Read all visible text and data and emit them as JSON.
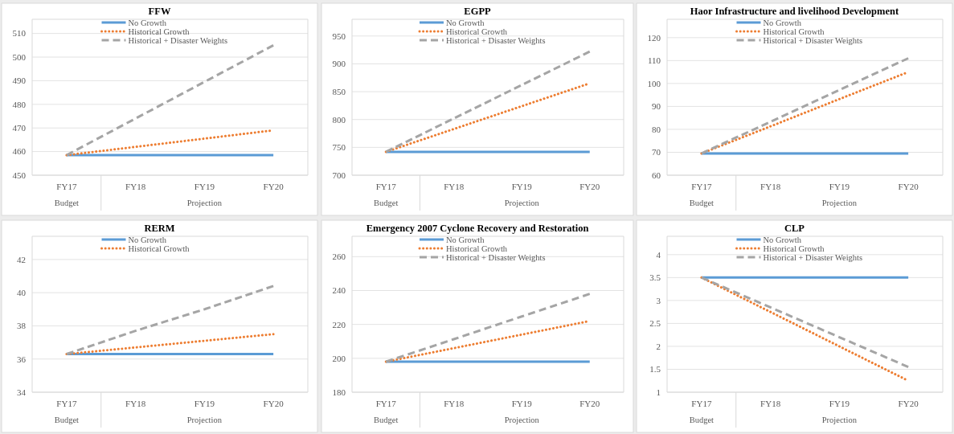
{
  "chart_data": [
    {
      "type": "line",
      "title": "FFW",
      "categories": [
        "FY17",
        "FY18",
        "FY19",
        "FY20"
      ],
      "ylim": [
        450,
        516
      ],
      "yticks": [
        450,
        460,
        470,
        480,
        490,
        500,
        510
      ],
      "grid": "y",
      "legend": "top",
      "annotations": [
        "Budget",
        "Projection"
      ],
      "series": [
        {
          "name": "No Growth",
          "color": "#5b9bd5",
          "line_style": "solid",
          "values": [
            458.5,
            458.5,
            458.5,
            458.5
          ]
        },
        {
          "name": "Historical Growth",
          "color": "#ed7d31",
          "line_style": "dotted",
          "values": [
            458.5,
            462,
            465.5,
            469
          ]
        },
        {
          "name": "Historical + Disaster Weights",
          "color": "#a5a5a5",
          "line_style": "dashed",
          "values": [
            458.5,
            474,
            489.5,
            505
          ]
        }
      ]
    },
    {
      "type": "line",
      "title": "EGPP",
      "categories": [
        "FY17",
        "FY18",
        "FY19",
        "FY20"
      ],
      "ylim": [
        700,
        980
      ],
      "yticks": [
        700,
        750,
        800,
        850,
        900,
        950
      ],
      "grid": "y",
      "legend": "top",
      "annotations": [
        "Budget",
        "Projection"
      ],
      "series": [
        {
          "name": "No Growth",
          "color": "#5b9bd5",
          "line_style": "solid",
          "values": [
            742,
            742,
            742,
            742
          ]
        },
        {
          "name": "Historical Growth",
          "color": "#ed7d31",
          "line_style": "dotted",
          "values": [
            742,
            783,
            824,
            865
          ]
        },
        {
          "name": "Historical + Disaster Weights",
          "color": "#a5a5a5",
          "line_style": "dashed",
          "values": [
            742,
            802,
            862,
            922
          ]
        }
      ]
    },
    {
      "type": "line",
      "title": "Haor Infrastructure and livelihood Development",
      "categories": [
        "FY17",
        "FY18",
        "FY19",
        "FY20"
      ],
      "ylim": [
        60,
        128
      ],
      "yticks": [
        60,
        70,
        80,
        90,
        100,
        110,
        120
      ],
      "grid": "y",
      "legend": "top",
      "annotations": [
        "Budget",
        "Projection"
      ],
      "series": [
        {
          "name": "No Growth",
          "color": "#5b9bd5",
          "line_style": "solid",
          "values": [
            69.5,
            69.5,
            69.5,
            69.5
          ]
        },
        {
          "name": "Historical Growth",
          "color": "#ed7d31",
          "line_style": "dotted",
          "values": [
            69.5,
            81.3,
            93.2,
            105
          ]
        },
        {
          "name": "Historical + Disaster Weights",
          "color": "#a5a5a5",
          "line_style": "dashed",
          "values": [
            69.5,
            83.3,
            97.2,
            111
          ]
        }
      ]
    },
    {
      "type": "line",
      "title": "RERM",
      "categories": [
        "FY17",
        "FY18",
        "FY19",
        "FY20"
      ],
      "ylim": [
        34,
        43.4
      ],
      "yticks": [
        34,
        36,
        38,
        40,
        42
      ],
      "grid": "y",
      "legend": "top",
      "annotations": [
        "Budget",
        "Projection"
      ],
      "series": [
        {
          "name": "No Growth",
          "color": "#5b9bd5",
          "line_style": "solid",
          "values": [
            36.3,
            36.3,
            36.3,
            36.3
          ]
        },
        {
          "name": "Historical Growth",
          "color": "#ed7d31",
          "line_style": "dotted",
          "values": [
            36.3,
            36.7,
            37.1,
            37.5
          ]
        },
        {
          "color": "#a5a5a5",
          "line_style": "dashed",
          "values": [
            36.3,
            37.7,
            39.0,
            40.4
          ]
        }
      ]
    },
    {
      "type": "line",
      "title": "Emergency 2007 Cyclone Recovery and Restoration",
      "categories": [
        "FY17",
        "FY18",
        "FY19",
        "FY20"
      ],
      "ylim": [
        180,
        272
      ],
      "yticks": [
        180,
        200,
        220,
        240,
        260
      ],
      "grid": "y",
      "legend": "top",
      "annotations": [
        "Budget",
        "Projection"
      ],
      "series": [
        {
          "name": "No Growth",
          "color": "#5b9bd5",
          "line_style": "solid",
          "values": [
            198,
            198,
            198,
            198
          ]
        },
        {
          "name": "Historical Growth",
          "color": "#ed7d31",
          "line_style": "dotted",
          "values": [
            198,
            206,
            214,
            222
          ]
        },
        {
          "name": "Historical + Disaster Weights",
          "color": "#a5a5a5",
          "line_style": "dashed",
          "values": [
            198,
            211.3,
            224.7,
            238
          ]
        }
      ]
    },
    {
      "type": "line",
      "title": "CLP",
      "categories": [
        "FY17",
        "FY18",
        "FY19",
        "FY20"
      ],
      "ylim": [
        1,
        4.4
      ],
      "yticks": [
        1,
        1.5,
        2,
        2.5,
        3,
        3.5,
        4
      ],
      "grid": "y",
      "legend": "top",
      "annotations": [
        "Budget",
        "Projection"
      ],
      "series": [
        {
          "name": "No Growth",
          "color": "#5b9bd5",
          "line_style": "solid",
          "values": [
            3.5,
            3.5,
            3.5,
            3.5
          ]
        },
        {
          "name": "Historical Growth",
          "color": "#ed7d31",
          "line_style": "dotted",
          "values": [
            3.5,
            2.75,
            2.0,
            1.25
          ]
        },
        {
          "name": "Historical + Disaster Weights",
          "color": "#a5a5a5",
          "line_style": "dashed",
          "values": [
            3.5,
            2.85,
            2.2,
            1.55
          ]
        }
      ]
    }
  ]
}
